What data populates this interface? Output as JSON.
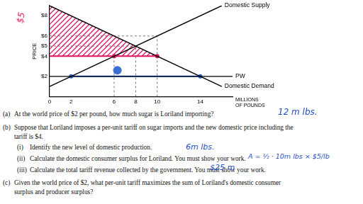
{
  "chart_data": {
    "type": "line",
    "y_label": "PRICE",
    "x_label": "MILLIONS OF POUNDS",
    "xlim": [
      0,
      17
    ],
    "xticks": [
      0,
      2,
      6,
      8,
      10,
      14
    ],
    "ylim": [
      0,
      9
    ],
    "yticks": [
      {
        "value": 2,
        "label": "$2"
      },
      {
        "value": 4,
        "label": "$4"
      },
      {
        "value": 5,
        "label": "$5"
      },
      {
        "value": 6,
        "label": "$6"
      },
      {
        "value": 8,
        "label": "$8"
      }
    ],
    "grid": false,
    "series": [
      {
        "name": "Domestic Supply",
        "color": "#000000",
        "x": [
          0,
          16
        ],
        "values": [
          1,
          9
        ]
      },
      {
        "name": "Domestic Demand",
        "color": "#000000",
        "x": [
          0,
          16
        ],
        "values": [
          9,
          1
        ]
      },
      {
        "name": "PW",
        "color": "#000000",
        "x": [
          0,
          17
        ],
        "values": [
          2,
          2
        ]
      }
    ],
    "guides": [
      {
        "x": [
          0,
          10
        ],
        "values": [
          6,
          6
        ],
        "color": "#666666",
        "line_style": "dashed"
      },
      {
        "x": [
          0,
          8
        ],
        "values": [
          5,
          5
        ],
        "color": "#666666",
        "line_style": "dashed"
      },
      {
        "x": [
          6,
          6
        ],
        "values": [
          0,
          4
        ],
        "color": "#666666",
        "line_style": "dashed"
      },
      {
        "x": [
          8,
          8
        ],
        "values": [
          0,
          5
        ],
        "color": "#666666",
        "line_style": "dashed"
      },
      {
        "x": [
          10,
          10
        ],
        "values": [
          0,
          6
        ],
        "color": "#666666",
        "line_style": "dashed"
      }
    ],
    "hand_lines": [
      {
        "x": [
          0,
          10
        ],
        "values": [
          4,
          4
        ],
        "color": "#e0115f",
        "line_style": "solid"
      },
      {
        "x": [
          2,
          14
        ],
        "values": [
          2,
          2
        ],
        "color": "#1f5fd6",
        "line_style": "solid"
      }
    ],
    "markers": [
      {
        "x": [
          6,
          10
        ],
        "values": [
          4,
          4
        ],
        "color": "#e0115f",
        "marker": "dot"
      },
      {
        "x": [
          2,
          14
        ],
        "values": [
          2,
          2
        ],
        "color": "#1f5fd6",
        "marker": "dot"
      },
      {
        "x": [
          6.3
        ],
        "values": [
          2.6
        ],
        "color": "#3a6fd8",
        "marker": "large"
      }
    ],
    "hatched_region": {
      "x": [
        0,
        0,
        10
      ],
      "values": [
        4,
        9,
        4
      ],
      "color": "#e0115f"
    }
  },
  "handwriting": [
    {
      "text": "$5",
      "color": "#e0115f"
    },
    {
      "text": "12 m lbs.",
      "color": "#1f4fc0"
    },
    {
      "text": "6m lbs.",
      "color": "#1f4fc0"
    },
    {
      "text": "A = ½ · 10m lbs × $5/lb",
      "color": "#1f4fc0"
    },
    {
      "text": "$25 m",
      "color": "#1f4fc0"
    }
  ],
  "questions": [
    {
      "label": "(a)",
      "text": "At the world price of $2 per pound, how much sugar is Loriland importing?"
    },
    {
      "label": "(b)",
      "text": "Suppose that Loriland imposes a per-unit tariff on sugar imports and the new domestic price including the",
      "continuation": "tariff is $4.",
      "parts": [
        {
          "label": "(i)",
          "text": "Identify the new level of domestic production."
        },
        {
          "label": "(ii)",
          "text": "Calculate the domestic consumer surplus for Loriland. You must show your work."
        },
        {
          "label": "(iii)",
          "text": "Calculate the total tariff revenue collected by the government. You must show your work."
        }
      ]
    },
    {
      "label": "(c)",
      "text": "Given the world price of $2, what per-unit tariff maximizes the sum of Loriland's domestic consumer",
      "continuation": "surplus and producer surplus?"
    }
  ]
}
